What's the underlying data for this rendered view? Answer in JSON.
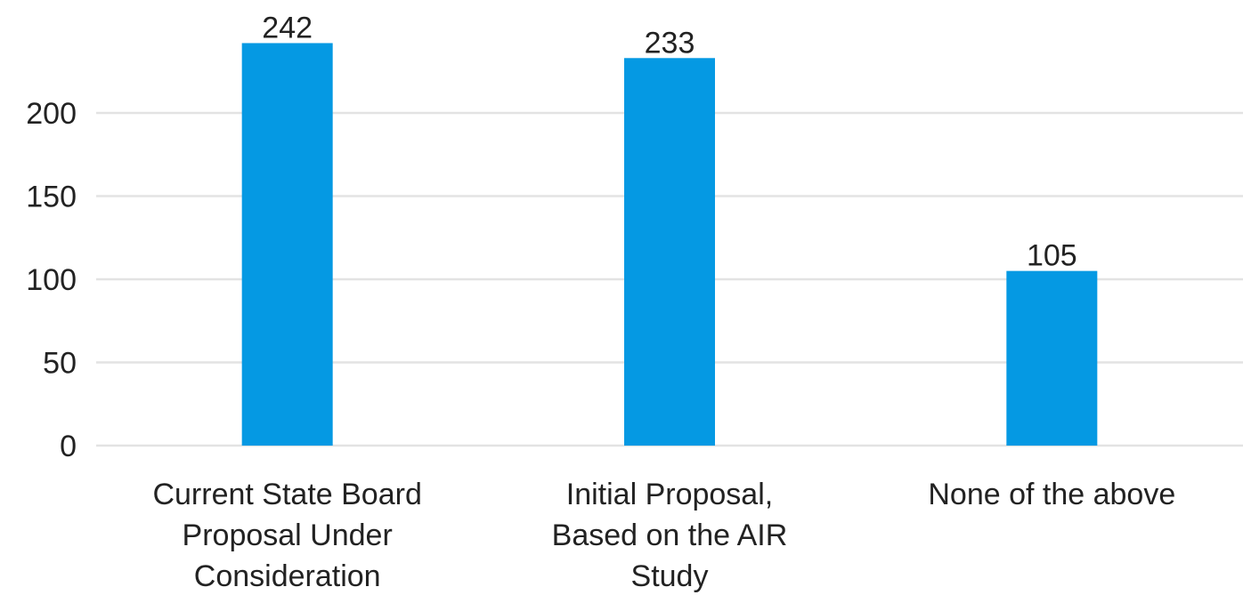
{
  "chart_data": {
    "type": "bar",
    "categories": [
      [
        "Current State Board",
        "Proposal Under",
        "Consideration"
      ],
      [
        "Initial Proposal,",
        "Based on the AIR",
        "Study"
      ],
      [
        "None of the above"
      ]
    ],
    "values": [
      242,
      233,
      105
    ],
    "data_labels": [
      "242",
      "233",
      "105"
    ],
    "ylim": [
      0,
      250
    ],
    "yticks": [
      0,
      50,
      100,
      150,
      200
    ],
    "ytick_labels": [
      "0",
      "50",
      "100",
      "150",
      "200"
    ],
    "grid": true,
    "legend": "none",
    "colors": {
      "bar": "#0599e3",
      "grid": "#e3e3e3",
      "text": "#222222"
    }
  }
}
